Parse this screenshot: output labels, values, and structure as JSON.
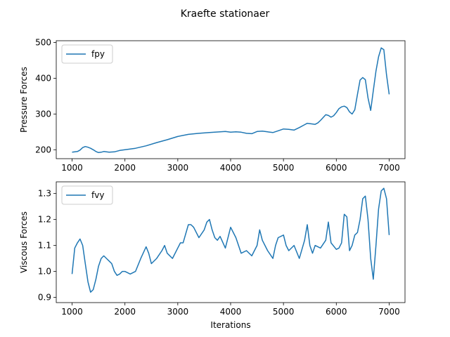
{
  "figure": {
    "title": "Kraefte stationaer"
  },
  "chart_data": [
    {
      "type": "line",
      "title": "",
      "xlabel": "",
      "ylabel": "Pressure Forces",
      "xlim": [
        700,
        7300
      ],
      "ylim": [
        175,
        505
      ],
      "xticks": [
        1000,
        2000,
        3000,
        4000,
        5000,
        6000,
        7000
      ],
      "yticks": [
        200,
        300,
        400,
        500
      ],
      "grid": false,
      "legend": "top-left",
      "series": [
        {
          "name": "fpy",
          "color": "#1f77b4",
          "x": [
            1000,
            1100,
            1150,
            1200,
            1250,
            1300,
            1350,
            1400,
            1450,
            1500,
            1550,
            1600,
            1700,
            1800,
            1900,
            2000,
            2200,
            2400,
            2600,
            2800,
            3000,
            3200,
            3400,
            3600,
            3800,
            3900,
            4000,
            4100,
            4200,
            4300,
            4400,
            4500,
            4600,
            4700,
            4800,
            4900,
            5000,
            5100,
            5200,
            5300,
            5400,
            5450,
            5500,
            5600,
            5650,
            5700,
            5750,
            5800,
            5850,
            5900,
            5950,
            6000,
            6050,
            6100,
            6150,
            6200,
            6250,
            6300,
            6350,
            6400,
            6450,
            6500,
            6550,
            6600,
            6650,
            6700,
            6750,
            6800,
            6850,
            6900,
            6950,
            7000
          ],
          "y": [
            193,
            195,
            199,
            206,
            209,
            207,
            204,
            200,
            195,
            192,
            193,
            195,
            193,
            194,
            198,
            200,
            204,
            211,
            220,
            228,
            237,
            243,
            246,
            248,
            250,
            251,
            249,
            250,
            249,
            246,
            245,
            251,
            252,
            250,
            248,
            253,
            258,
            257,
            255,
            262,
            270,
            274,
            273,
            271,
            275,
            282,
            290,
            298,
            296,
            291,
            295,
            304,
            315,
            320,
            322,
            318,
            306,
            300,
            312,
            355,
            395,
            402,
            396,
            345,
            310,
            365,
            420,
            460,
            485,
            480,
            410,
            355
          ]
        }
      ]
    },
    {
      "type": "line",
      "title": "",
      "xlabel": "Iterations",
      "ylabel": "Viscous Forces",
      "xlim": [
        700,
        7300
      ],
      "ylim": [
        0.88,
        1.345
      ],
      "xticks": [
        1000,
        2000,
        3000,
        4000,
        5000,
        6000,
        7000
      ],
      "yticks": [
        0.9,
        1.0,
        1.1,
        1.2,
        1.3
      ],
      "grid": false,
      "legend": "top-left",
      "series": [
        {
          "name": "fvy",
          "color": "#1f77b4",
          "x": [
            1000,
            1050,
            1100,
            1150,
            1200,
            1250,
            1300,
            1350,
            1400,
            1450,
            1500,
            1550,
            1600,
            1650,
            1700,
            1750,
            1800,
            1850,
            1900,
            1950,
            2000,
            2100,
            2200,
            2300,
            2400,
            2450,
            2500,
            2600,
            2700,
            2750,
            2800,
            2900,
            3000,
            3050,
            3100,
            3200,
            3250,
            3300,
            3400,
            3500,
            3550,
            3600,
            3650,
            3700,
            3750,
            3800,
            3900,
            4000,
            4100,
            4200,
            4300,
            4400,
            4500,
            4550,
            4600,
            4700,
            4800,
            4850,
            4900,
            5000,
            5050,
            5100,
            5200,
            5300,
            5400,
            5450,
            5500,
            5550,
            5600,
            5700,
            5800,
            5850,
            5900,
            6000,
            6050,
            6100,
            6150,
            6200,
            6250,
            6300,
            6350,
            6400,
            6450,
            6500,
            6550,
            6600,
            6650,
            6700,
            6750,
            6800,
            6850,
            6900,
            6950,
            7000
          ],
          "y": [
            0.99,
            1.09,
            1.11,
            1.125,
            1.1,
            1.03,
            0.96,
            0.92,
            0.93,
            0.97,
            1.02,
            1.05,
            1.06,
            1.05,
            1.04,
            1.03,
            1.0,
            0.985,
            0.99,
            1.0,
            1.0,
            0.99,
            1.0,
            1.05,
            1.095,
            1.07,
            1.03,
            1.05,
            1.08,
            1.1,
            1.07,
            1.05,
            1.09,
            1.11,
            1.11,
            1.18,
            1.18,
            1.17,
            1.13,
            1.16,
            1.19,
            1.2,
            1.16,
            1.13,
            1.12,
            1.135,
            1.09,
            1.17,
            1.13,
            1.07,
            1.08,
            1.06,
            1.1,
            1.16,
            1.12,
            1.08,
            1.05,
            1.1,
            1.13,
            1.14,
            1.1,
            1.08,
            1.1,
            1.05,
            1.12,
            1.18,
            1.1,
            1.07,
            1.1,
            1.09,
            1.12,
            1.19,
            1.11,
            1.085,
            1.09,
            1.11,
            1.22,
            1.21,
            1.08,
            1.1,
            1.14,
            1.15,
            1.2,
            1.28,
            1.29,
            1.2,
            1.05,
            0.97,
            1.1,
            1.24,
            1.31,
            1.32,
            1.28,
            1.14
          ]
        }
      ]
    }
  ]
}
